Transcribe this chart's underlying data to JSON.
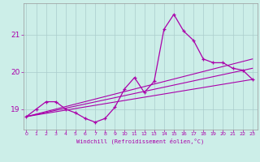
{
  "xlabel": "Windchill (Refroidissement éolien,°C)",
  "bg_color": "#cceee8",
  "grid_color": "#aacccc",
  "line_color": "#aa00aa",
  "hours": [
    0,
    1,
    2,
    3,
    4,
    5,
    6,
    7,
    8,
    9,
    10,
    11,
    12,
    13,
    14,
    15,
    16,
    17,
    18,
    19,
    20,
    21,
    22,
    23
  ],
  "windchill": [
    18.8,
    19.0,
    19.2,
    19.2,
    19.0,
    18.9,
    18.75,
    18.65,
    18.75,
    19.05,
    19.55,
    19.85,
    19.45,
    19.75,
    21.15,
    21.55,
    21.1,
    20.85,
    20.35,
    20.25,
    20.25,
    20.1,
    20.05,
    19.8
  ],
  "trend1_x": [
    0,
    23
  ],
  "trend1_y": [
    18.8,
    19.8
  ],
  "trend2_x": [
    0,
    23
  ],
  "trend2_y": [
    18.8,
    20.1
  ],
  "trend3_x": [
    0,
    23
  ],
  "trend3_y": [
    18.8,
    20.35
  ],
  "ylim": [
    18.45,
    21.85
  ],
  "yticks": [
    19,
    20,
    21
  ],
  "xticks": [
    0,
    1,
    2,
    3,
    4,
    5,
    6,
    7,
    8,
    9,
    10,
    11,
    12,
    13,
    14,
    15,
    16,
    17,
    18,
    19,
    20,
    21,
    22,
    23
  ],
  "xlim": [
    -0.3,
    23.5
  ]
}
